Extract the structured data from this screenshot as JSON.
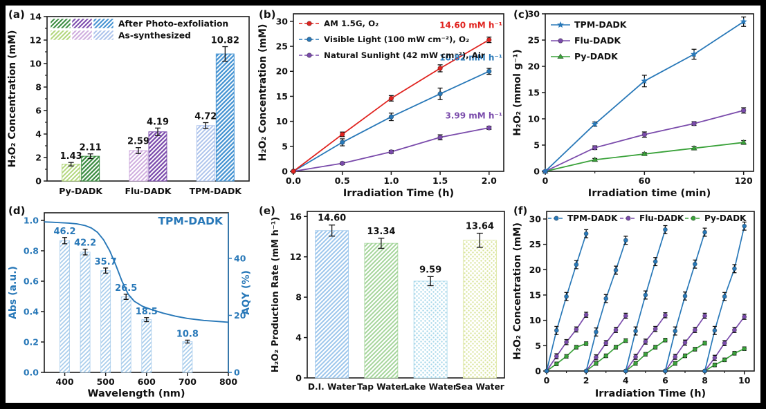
{
  "figure": {
    "background": "#000000",
    "panel_background": "#ffffff",
    "accent_blue": "#2878b8",
    "accent_red": "#e0231f",
    "accent_purple": "#7a4bab",
    "accent_green": "#3aa23a"
  },
  "chart_data": [
    {
      "panel_label": "(a)",
      "type": "bar",
      "ylabel": "H₂O₂ Concentration (mM)",
      "ylim": [
        0,
        14
      ],
      "yticks": [
        0,
        2,
        4,
        6,
        8,
        10,
        12,
        14
      ],
      "minor_yticks": [
        1,
        3,
        5,
        7,
        9,
        11,
        13
      ],
      "categories": [
        "Py-DADK",
        "Flu-DADK",
        "TPM-DADK"
      ],
      "legend": [
        "After Photo-exfoliation",
        "As-synthesized"
      ],
      "series": [
        {
          "name": "As-synthesized",
          "values": [
            1.43,
            2.59,
            4.72
          ],
          "errors": [
            0.15,
            0.25,
            0.25
          ]
        },
        {
          "name": "After Photo-exfoliation",
          "values": [
            2.11,
            4.19,
            10.82
          ],
          "errors": [
            0.2,
            0.32,
            0.62
          ]
        }
      ],
      "bar_colors_light": [
        "#b3d77d",
        "#cfadde",
        "#aec4ec"
      ],
      "bar_colors_dark": [
        "#3e8e44",
        "#7e4fae",
        "#4794d2"
      ]
    },
    {
      "panel_label": "(b)",
      "type": "line",
      "xlabel": "Irradiation Time (h)",
      "ylabel": "H₂O₂ Concentration (mM)",
      "xlim": [
        0,
        2.15
      ],
      "xticks": [
        0,
        0.5,
        1,
        1.5,
        2
      ],
      "xtick_labels": [
        "0.0",
        "0.5",
        "1.0",
        "1.5",
        "2.0"
      ],
      "ylim": [
        0,
        31.5
      ],
      "yticks": [
        0,
        5,
        10,
        15,
        20,
        25,
        30
      ],
      "x": [
        0,
        0.5,
        1,
        1.5,
        2
      ],
      "series": [
        {
          "name": "AM 1.5G, O₂",
          "color": "#e0231f",
          "marker": "circle",
          "values": [
            0,
            7.4,
            14.6,
            20.6,
            26.3
          ],
          "errors": [
            0,
            0.45,
            0.55,
            0.7,
            0.55
          ],
          "annotation": "14.60 mM h⁻¹",
          "ann_y": 28.7
        },
        {
          "name": "Visible Light (100 mW cm⁻²), O₂",
          "color": "#2878b8",
          "marker": "circle",
          "values": [
            0,
            5.8,
            10.9,
            15.5,
            20.0
          ],
          "errors": [
            0,
            0.7,
            0.75,
            1.15,
            0.6
          ],
          "annotation": "10.82 mM h⁻¹",
          "ann_y": 22.2
        },
        {
          "name": "Natural Sunlight (42 mW cm⁻²), Air",
          "color": "#7a4bab",
          "marker": "circle",
          "values": [
            0,
            1.6,
            3.9,
            6.8,
            8.7
          ],
          "errors": [
            0,
            0.25,
            0.3,
            0.5,
            0.3
          ],
          "annotation": "3.99 mM h⁻¹",
          "ann_y": 10.6
        }
      ]
    },
    {
      "panel_label": "(c)",
      "type": "line",
      "xlabel": "Irradiation time (min)",
      "ylabel": "H₂O₂ (mmol g⁻¹)",
      "xlim": [
        0,
        126
      ],
      "xticks": [
        0,
        60,
        120
      ],
      "minor_xticks": [
        30,
        90
      ],
      "ylim": [
        0,
        30
      ],
      "yticks": [
        0,
        5,
        10,
        15,
        20,
        25,
        30
      ],
      "x": [
        0,
        30,
        60,
        90,
        120
      ],
      "series": [
        {
          "name": "TPM-DADK",
          "color": "#2878b8",
          "marker": "star",
          "values": [
            0,
            9.0,
            17.2,
            22.3,
            28.5
          ],
          "errors": [
            0,
            0.4,
            1.1,
            0.95,
            0.9
          ]
        },
        {
          "name": "Flu-DADK",
          "color": "#7a4bab",
          "marker": "circle",
          "values": [
            0,
            4.5,
            7.0,
            9.1,
            11.6
          ],
          "errors": [
            0,
            0.35,
            0.5,
            0.35,
            0.5
          ]
        },
        {
          "name": "Py-DADK",
          "color": "#3aa23a",
          "marker": "triangle",
          "values": [
            0,
            2.2,
            3.3,
            4.4,
            5.5
          ],
          "errors": [
            0,
            0.25,
            0.25,
            0.3,
            0.35
          ]
        }
      ]
    },
    {
      "panel_label": "(d)",
      "type": "spectrum-aqy",
      "title": "TPM-DADK",
      "accent": "#2878b8",
      "xlabel": "Wavelength (nm)",
      "ylabel_left": "Abs (a.u.)",
      "ylabel_right": "AQY (%)",
      "xlim": [
        350,
        800
      ],
      "xticks": [
        400,
        500,
        600,
        700,
        800
      ],
      "ylim_left": [
        0,
        1.05
      ],
      "yticks_left": [
        0,
        0.2,
        0.4,
        0.6,
        0.8,
        1.0
      ],
      "ytick_left_labels": [
        "0.0",
        "0.2",
        "0.4",
        "0.6",
        "0.8",
        "1.0"
      ],
      "right_scale": 53.3,
      "yticks_right": [
        0,
        20,
        40
      ],
      "abs_curve": {
        "x": [
          350,
          370,
          390,
          410,
          430,
          450,
          465,
          480,
          495,
          510,
          525,
          540,
          555,
          570,
          590,
          610,
          640,
          670,
          700,
          740,
          770,
          800
        ],
        "y": [
          0.99,
          0.988,
          0.985,
          0.982,
          0.977,
          0.966,
          0.95,
          0.922,
          0.872,
          0.8,
          0.705,
          0.6,
          0.515,
          0.468,
          0.435,
          0.415,
          0.39,
          0.37,
          0.355,
          0.342,
          0.336,
          0.33
        ]
      },
      "aqy_bars": {
        "wavelengths": [
          400,
          450,
          500,
          550,
          600,
          700
        ],
        "values": [
          46.2,
          42.2,
          35.7,
          26.5,
          18.5,
          10.8
        ],
        "errors": [
          1.1,
          1.0,
          0.9,
          0.9,
          0.7,
          0.5
        ],
        "bar_color": "#a9cdec"
      }
    },
    {
      "panel_label": "(e)",
      "type": "bar",
      "ylabel": "H₂O₂ Production Rate (mM h⁻¹)",
      "ylim": [
        0,
        16.5
      ],
      "yticks": [
        0,
        4,
        8,
        12,
        16
      ],
      "categories": [
        "D.I. Water",
        "Tap Water",
        "Lake Water",
        "Sea Water"
      ],
      "values": [
        14.6,
        13.34,
        9.59,
        13.64
      ],
      "errors": [
        0.55,
        0.5,
        0.45,
        0.7
      ],
      "bar_styles": [
        {
          "pattern": "hatch",
          "color": "#9cc6ec"
        },
        {
          "pattern": "hatch",
          "color": "#a5d59b"
        },
        {
          "pattern": "dots",
          "color": "#a6d7ea"
        },
        {
          "pattern": "dots",
          "color": "#d9e49a"
        }
      ]
    },
    {
      "panel_label": "(f)",
      "type": "cycling",
      "xlabel": "Irradiation Time (h)",
      "ylabel": "H₂O₂ Concentration (mM)",
      "xlim": [
        0,
        10.5
      ],
      "xticks": [
        0,
        2,
        4,
        6,
        8,
        10
      ],
      "minor_xticks": [
        1,
        3,
        5,
        7,
        9
      ],
      "ylim": [
        0,
        31.5
      ],
      "yticks": [
        0,
        5,
        10,
        15,
        20,
        25,
        30
      ],
      "cycle_x": [
        0,
        0.5,
        1,
        1.5,
        2
      ],
      "series": [
        {
          "name": "TPM-DADK",
          "color": "#2878b8",
          "err": 0.8,
          "cycles": [
            [
              0,
              8.0,
              14.7,
              21.0,
              27.1
            ],
            [
              0,
              7.7,
              14.3,
              19.9,
              25.8
            ],
            [
              0,
              7.9,
              15.0,
              21.6,
              27.9
            ],
            [
              0,
              7.9,
              14.8,
              21.1,
              27.4
            ],
            [
              0,
              8.0,
              14.7,
              20.2,
              28.6
            ]
          ]
        },
        {
          "name": "Flu-DADK",
          "color": "#7a4bab",
          "err": 0.5,
          "cycles": [
            [
              0,
              2.9,
              5.7,
              8.2,
              11.1
            ],
            [
              0,
              2.7,
              5.5,
              8.1,
              10.9
            ],
            [
              0,
              2.8,
              5.8,
              8.3,
              11.0
            ],
            [
              0,
              2.8,
              5.6,
              8.1,
              10.9
            ],
            [
              0,
              2.6,
              5.5,
              8.1,
              10.7
            ]
          ]
        },
        {
          "name": "Py-DADK",
          "color": "#3aa23a",
          "err": 0.35,
          "cycles": [
            [
              0,
              1.4,
              2.9,
              4.7,
              5.4
            ],
            [
              0,
              1.5,
              3.0,
              4.7,
              6.0
            ],
            [
              0,
              1.5,
              3.3,
              4.7,
              6.1
            ],
            [
              0,
              1.5,
              3.0,
              4.3,
              5.5
            ],
            [
              0,
              1.2,
              2.2,
              3.5,
              4.4
            ]
          ]
        }
      ]
    }
  ]
}
